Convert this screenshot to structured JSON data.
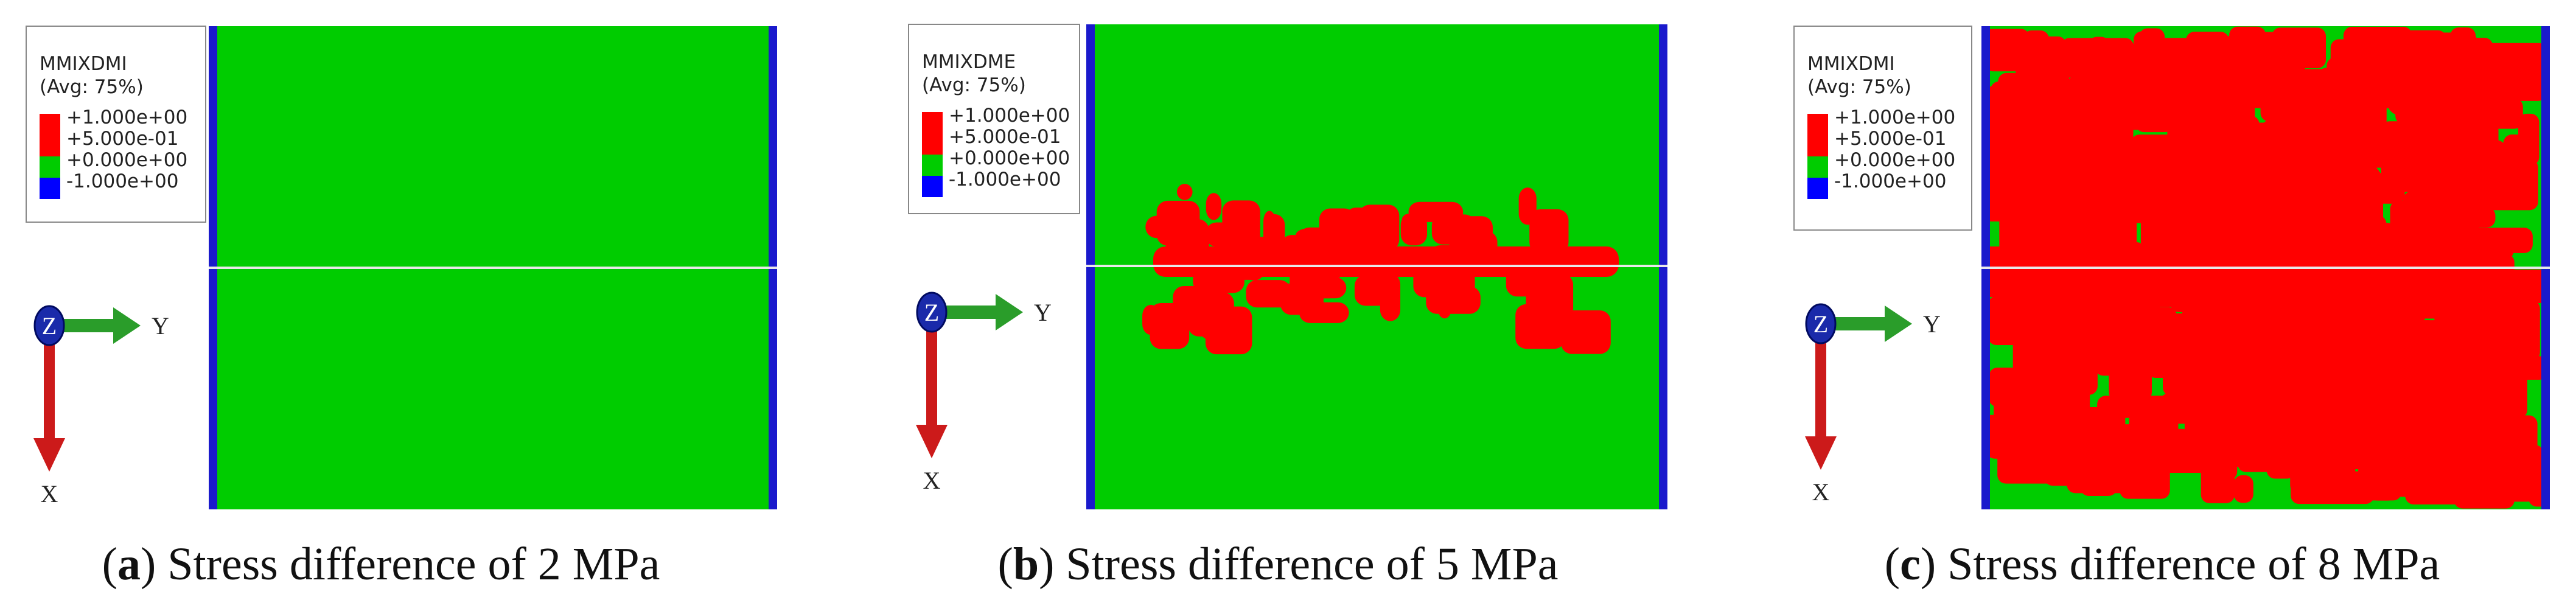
{
  "panels": [
    {
      "legend": {
        "variable": "MMIXDMI",
        "averaging": "(Avg: 75%)",
        "levels": [
          "+1.000e+00",
          "+5.000e-01",
          "+0.000e+00",
          "-1.000e+00"
        ]
      },
      "triad": {
        "z": "Z",
        "y": "Y",
        "x": "X"
      },
      "caption": {
        "open": "(",
        "letter": "a",
        "text": ") Stress difference of 2 MPa"
      }
    },
    {
      "legend": {
        "variable": "MMIXDME",
        "averaging": "(Avg: 75%)",
        "levels": [
          "+1.000e+00",
          "+5.000e-01",
          "+0.000e+00",
          "-1.000e+00"
        ]
      },
      "triad": {
        "z": "Z",
        "y": "Y",
        "x": "X"
      },
      "caption": {
        "open": "(",
        "letter": "b",
        "text": ") Stress difference of 5 MPa"
      }
    },
    {
      "legend": {
        "variable": "MMIXDMI",
        "averaging": "(Avg: 75%)",
        "levels": [
          "+1.000e+00",
          "+5.000e-01",
          "+0.000e+00",
          "-1.000e+00"
        ]
      },
      "triad": {
        "z": "Z",
        "y": "Y",
        "x": "X"
      },
      "caption": {
        "open": "(",
        "letter": "c",
        "text": ") Stress difference of 8 MPa"
      }
    }
  ]
}
